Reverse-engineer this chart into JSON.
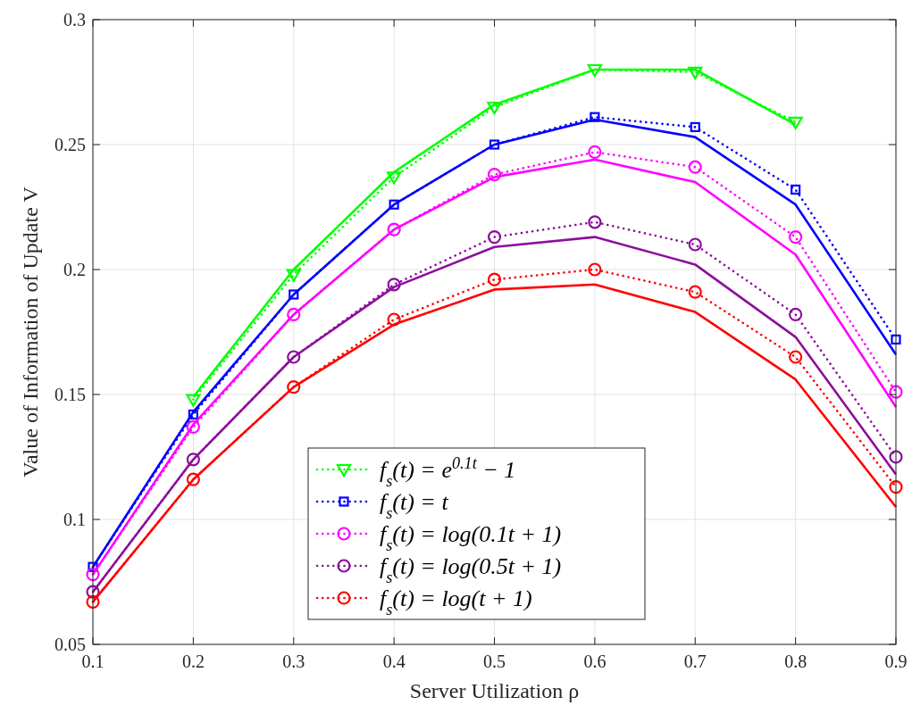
{
  "chart_data": {
    "type": "line",
    "xlabel": "Server Utilization ρ",
    "ylabel": "Value of Information of Update V",
    "x": [
      0.1,
      0.2,
      0.3,
      0.4,
      0.5,
      0.6,
      0.7,
      0.8,
      0.9
    ],
    "xlim": [
      0.1,
      0.9
    ],
    "xticks": [
      0.1,
      0.2,
      0.3,
      0.4,
      0.5,
      0.6,
      0.7,
      0.8,
      0.9
    ],
    "ylim": [
      0.05,
      0.3
    ],
    "yticks": [
      0.05,
      0.1,
      0.15,
      0.2,
      0.25,
      0.3
    ],
    "grid": true,
    "legend": "bottom",
    "series": [
      {
        "name": "f$_{s}$(t) = e$^{0.1t}$ − 1",
        "color": "#00ff00",
        "marker": "triangle",
        "line_style": "dotted",
        "values": [
          null,
          0.148,
          0.198,
          0.237,
          0.265,
          0.28,
          0.279,
          0.259,
          null
        ]
      },
      {
        "name": "f$_{s}$(t) = t",
        "color": "#0000ff",
        "marker": "square",
        "line_style": "dotted",
        "values": [
          0.081,
          0.142,
          0.19,
          0.226,
          0.25,
          0.261,
          0.257,
          0.232,
          0.172
        ]
      },
      {
        "name": "f$_{s}$(t) = log(0.1t + 1)",
        "color": "#ff00ff",
        "marker": "circle",
        "line_style": "dotted",
        "values": [
          0.078,
          0.137,
          0.182,
          0.216,
          0.238,
          0.247,
          0.241,
          0.213,
          0.151
        ]
      },
      {
        "name": "f$_{s}$(t) = log(0.5t + 1)",
        "color": "#8b0f9b",
        "marker": "circle",
        "line_style": "dotted",
        "values": [
          0.071,
          0.124,
          0.165,
          0.194,
          0.213,
          0.219,
          0.21,
          0.182,
          0.125
        ]
      },
      {
        "name": "f$_{s}$(t) = log(t + 1)",
        "color": "#ff0000",
        "marker": "circle",
        "line_style": "dotted",
        "values": [
          0.067,
          0.116,
          0.153,
          0.18,
          0.196,
          0.2,
          0.191,
          0.165,
          0.113
        ]
      },
      {
        "color": "#00ff00",
        "marker": "none",
        "line_style": "solid",
        "values": [
          null,
          0.149,
          0.2,
          0.239,
          0.266,
          0.28,
          0.28,
          0.258,
          null
        ]
      },
      {
        "color": "#0000ff",
        "marker": "none",
        "line_style": "solid",
        "values": [
          0.081,
          0.143,
          0.19,
          0.226,
          0.25,
          0.26,
          0.253,
          0.226,
          0.166
        ]
      },
      {
        "color": "#ff00ff",
        "marker": "none",
        "line_style": "solid",
        "values": [
          0.078,
          0.138,
          0.182,
          0.216,
          0.237,
          0.244,
          0.235,
          0.206,
          0.145
        ]
      },
      {
        "color": "#8b0f9b",
        "marker": "none",
        "line_style": "solid",
        "values": [
          0.071,
          0.124,
          0.165,
          0.193,
          0.209,
          0.213,
          0.202,
          0.173,
          0.118
        ]
      },
      {
        "color": "#ff0000",
        "marker": "none",
        "line_style": "solid",
        "values": [
          0.067,
          0.116,
          0.153,
          0.178,
          0.192,
          0.194,
          0.183,
          0.156,
          0.105
        ]
      }
    ]
  }
}
